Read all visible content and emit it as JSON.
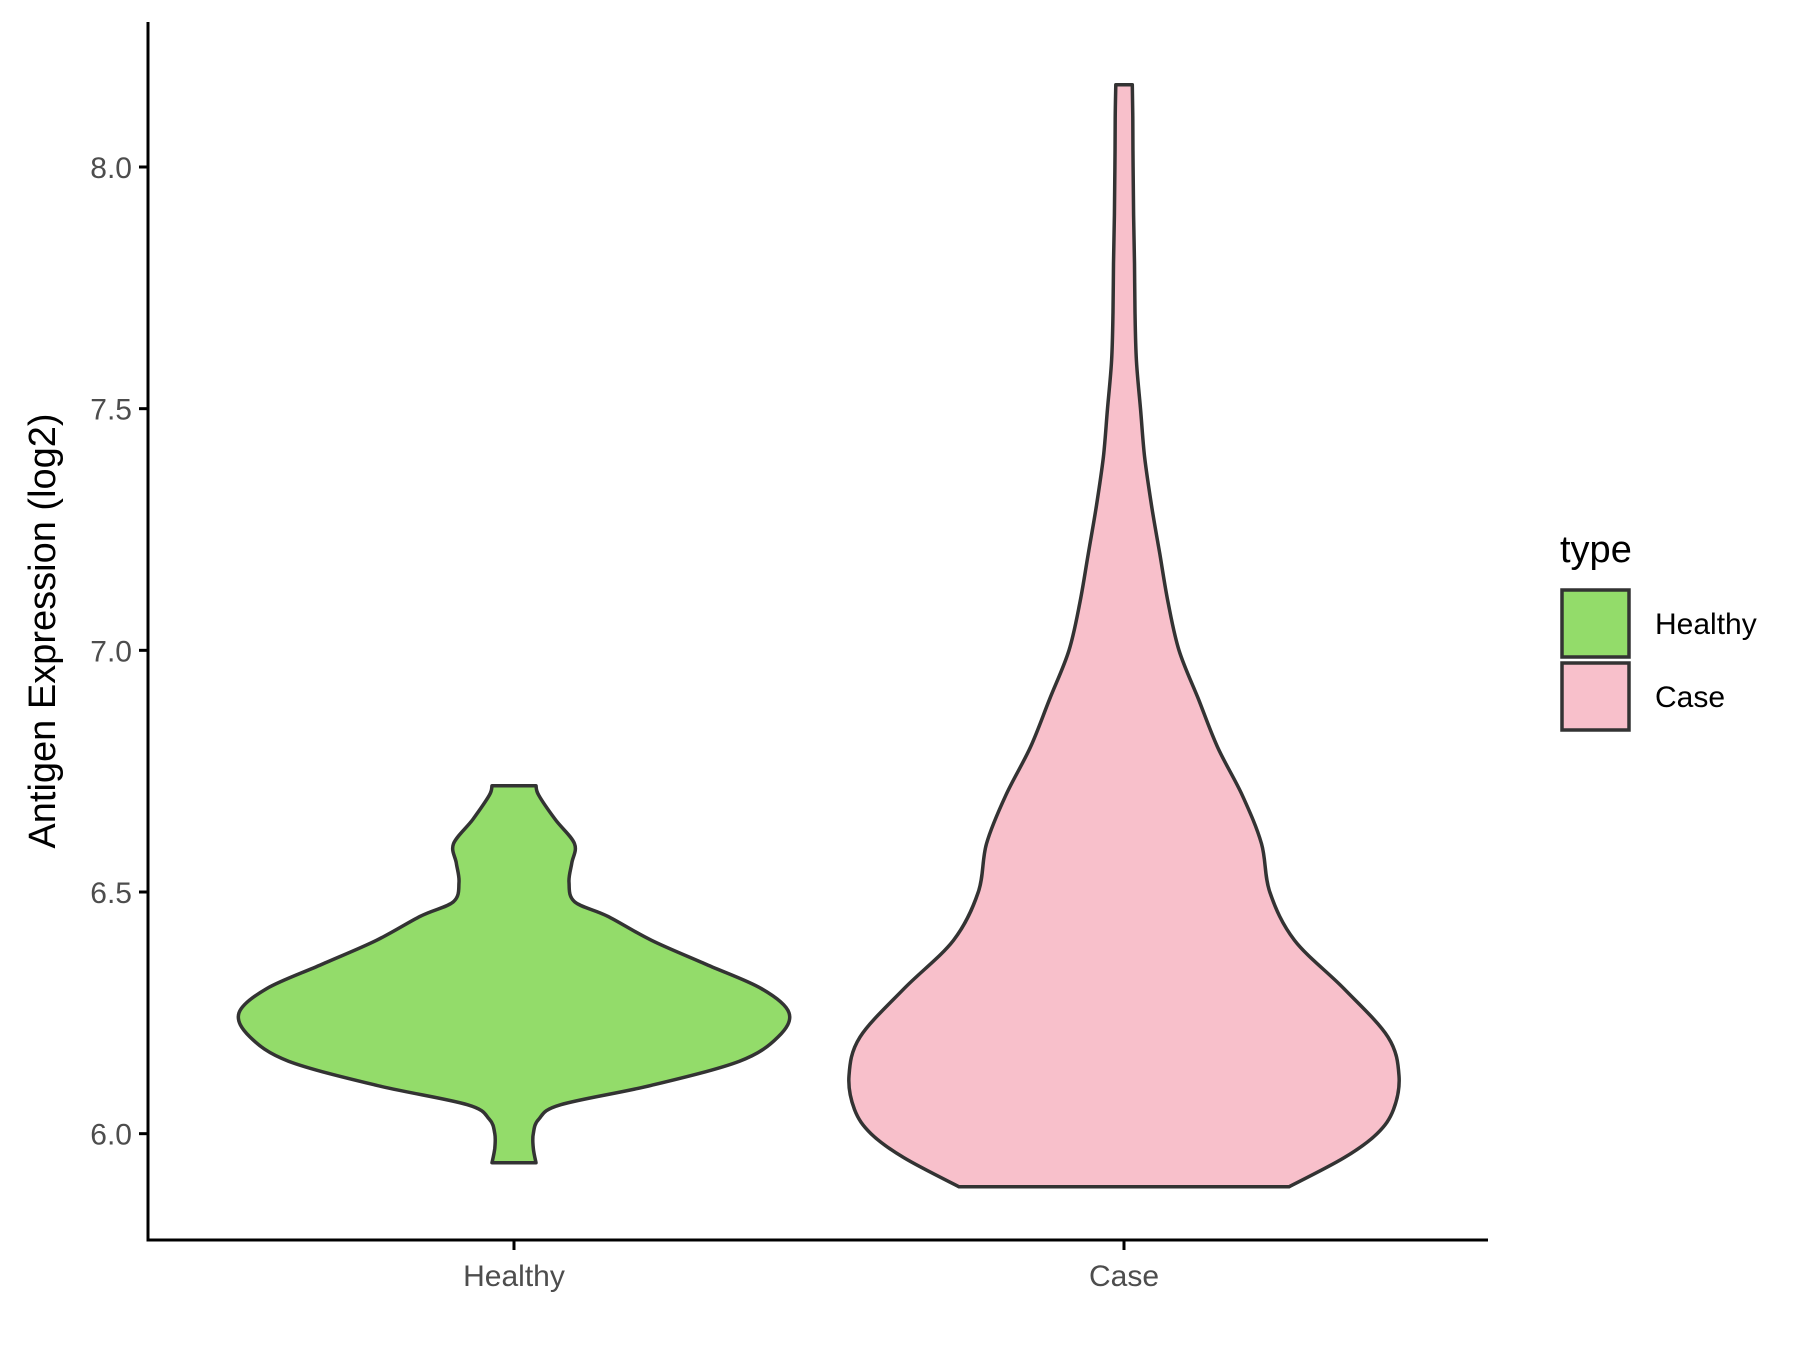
{
  "chart_data": {
    "type": "violin",
    "title": "",
    "xlabel": "",
    "ylabel": "Antigen Expression (log2)",
    "ylim": [
      5.78,
      8.3
    ],
    "y_ticks": [
      "6.0",
      "6.5",
      "7.0",
      "7.5",
      "8.0"
    ],
    "categories": [
      "Healthy",
      "Case"
    ],
    "legend": {
      "title": "type",
      "position": "right",
      "items": [
        {
          "label": "Healthy",
          "color": "#93dc6a"
        },
        {
          "label": "Case",
          "color": "#f8c0cb"
        }
      ]
    },
    "series": [
      {
        "name": "Healthy",
        "color": "#93dc6a",
        "ymin": 5.94,
        "ymax": 6.72,
        "density": [
          [
            5.94,
            0.08
          ],
          [
            5.97,
            0.07
          ],
          [
            6.0,
            0.07
          ],
          [
            6.03,
            0.09
          ],
          [
            6.06,
            0.17
          ],
          [
            6.1,
            0.5
          ],
          [
            6.15,
            0.82
          ],
          [
            6.2,
            0.96
          ],
          [
            6.25,
            1.0
          ],
          [
            6.3,
            0.9
          ],
          [
            6.35,
            0.7
          ],
          [
            6.4,
            0.5
          ],
          [
            6.45,
            0.34
          ],
          [
            6.48,
            0.22
          ],
          [
            6.52,
            0.2
          ],
          [
            6.56,
            0.21
          ],
          [
            6.6,
            0.22
          ],
          [
            6.65,
            0.15
          ],
          [
            6.7,
            0.09
          ],
          [
            6.72,
            0.08
          ]
        ]
      },
      {
        "name": "Case",
        "color": "#f8c0cb",
        "ymin": 5.89,
        "ymax": 8.17,
        "density": [
          [
            5.89,
            0.6
          ],
          [
            5.95,
            0.8
          ],
          [
            6.0,
            0.92
          ],
          [
            6.05,
            0.98
          ],
          [
            6.12,
            1.0
          ],
          [
            6.2,
            0.96
          ],
          [
            6.3,
            0.8
          ],
          [
            6.4,
            0.62
          ],
          [
            6.5,
            0.53
          ],
          [
            6.6,
            0.5
          ],
          [
            6.7,
            0.43
          ],
          [
            6.8,
            0.34
          ],
          [
            6.9,
            0.27
          ],
          [
            7.0,
            0.2
          ],
          [
            7.1,
            0.16
          ],
          [
            7.2,
            0.13
          ],
          [
            7.3,
            0.1
          ],
          [
            7.4,
            0.075
          ],
          [
            7.5,
            0.06
          ],
          [
            7.6,
            0.045
          ],
          [
            7.7,
            0.04
          ],
          [
            7.8,
            0.038
          ],
          [
            7.9,
            0.035
          ],
          [
            8.0,
            0.033
          ],
          [
            8.1,
            0.032
          ],
          [
            8.17,
            0.03
          ]
        ]
      }
    ]
  }
}
